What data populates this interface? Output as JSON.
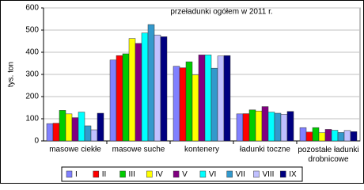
{
  "chart_data": {
    "type": "bar",
    "title": "przeładunki ogółem w 2011 r.",
    "y_label": "tys. ton",
    "categories": [
      "masowe ciekłe",
      "masowe suche",
      "kontenery",
      "ładunki toczne",
      "pozostałe ładunki drobnicowe"
    ],
    "series": [
      {
        "name": "I",
        "color": "#8080ff",
        "values": [
          78,
          365,
          337,
          122,
          60
        ]
      },
      {
        "name": "II",
        "color": "#ff0000",
        "values": [
          80,
          385,
          330,
          123,
          40
        ]
      },
      {
        "name": "III",
        "color": "#00cc00",
        "values": [
          138,
          393,
          357,
          140,
          60
        ]
      },
      {
        "name": "IV",
        "color": "#ffff00",
        "values": [
          122,
          462,
          298,
          135,
          37
        ]
      },
      {
        "name": "V",
        "color": "#800080",
        "values": [
          105,
          440,
          388,
          155,
          52
        ]
      },
      {
        "name": "VI",
        "color": "#00ffff",
        "values": [
          130,
          487,
          388,
          130,
          48
        ]
      },
      {
        "name": "VII",
        "color": "#3399cc",
        "values": [
          68,
          525,
          328,
          125,
          38
        ]
      },
      {
        "name": "VIII",
        "color": "#c0c0ff",
        "values": [
          50,
          478,
          383,
          120,
          47
        ]
      },
      {
        "name": "IX",
        "color": "#000080",
        "values": [
          125,
          470,
          385,
          133,
          42
        ]
      }
    ],
    "ylim": [
      0,
      600
    ],
    "yticks": [
      0,
      100,
      200,
      300,
      400,
      500,
      600
    ],
    "grid": true,
    "legend": "bottom"
  }
}
